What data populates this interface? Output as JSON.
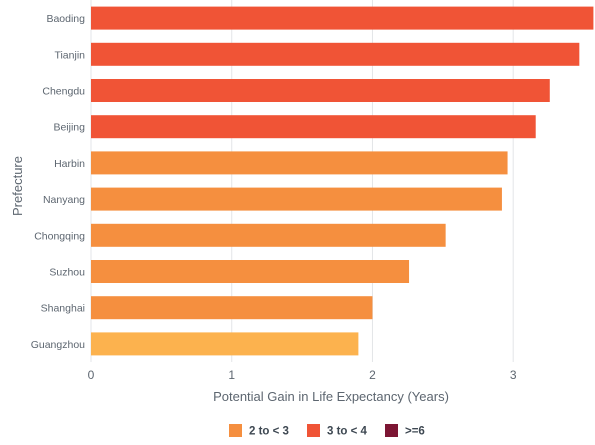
{
  "chart_data": {
    "type": "bar",
    "orientation": "horizontal",
    "title": "",
    "xlabel": "Potential Gain in Life Expectancy (Years)",
    "ylabel": "Prefecture",
    "xlim": [
      0,
      3.56
    ],
    "xticks": [
      "0",
      "1",
      "2",
      "3"
    ],
    "grid": true,
    "legend_position": "bottom",
    "categories": [
      "Baoding",
      "Tianjin",
      "Chengdu",
      "Beijing",
      "Harbin",
      "Nanyang",
      "Chongqing",
      "Suzhou",
      "Shanghai",
      "Guangzhou"
    ],
    "values": [
      3.57,
      3.47,
      3.26,
      3.16,
      2.96,
      2.92,
      2.52,
      2.26,
      2.0,
      1.9
    ],
    "groups": [
      "3 to < 4",
      "3 to < 4",
      "3 to < 4",
      "3 to < 4",
      "2 to < 3",
      "2 to < 3",
      "2 to < 3",
      "2 to < 3",
      "2 to < 3",
      "2 to < 3"
    ],
    "legend": [
      {
        "label": "2 to < 3",
        "color": "#f58f3f"
      },
      {
        "label": "3 to < 4",
        "color": "#f05436"
      },
      {
        "label": ">=6",
        "color": "#7c1533"
      }
    ],
    "highlight": {
      "category": "Guangzhou",
      "color": "#fcb24e"
    }
  }
}
